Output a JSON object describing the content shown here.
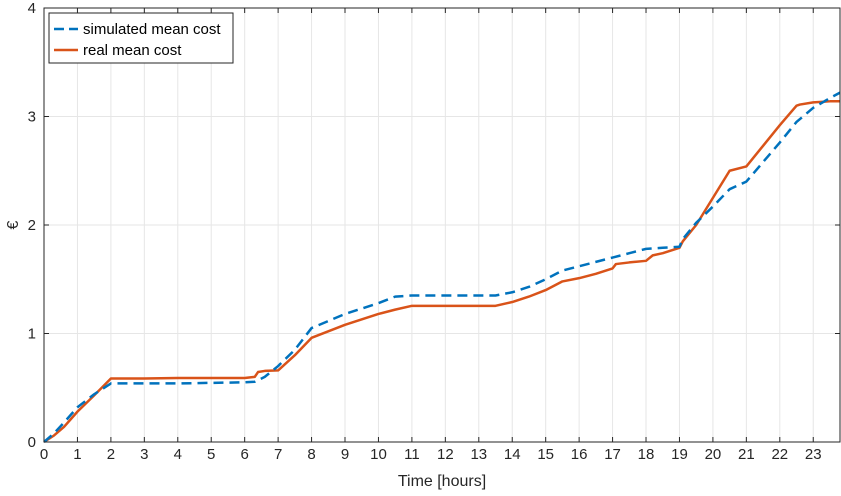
{
  "chart_data": {
    "type": "line",
    "title": "",
    "xlabel": "Time [hours]",
    "ylabel": "€",
    "xlim": [
      0,
      23.8
    ],
    "ylim": [
      0,
      4
    ],
    "x_ticks": [
      0,
      1,
      2,
      3,
      4,
      5,
      6,
      7,
      8,
      9,
      10,
      11,
      12,
      13,
      14,
      15,
      16,
      17,
      18,
      19,
      20,
      21,
      22,
      23
    ],
    "x_tick_labels": [
      "0",
      "1",
      "2",
      "3",
      "4",
      "5",
      "6",
      "7",
      "8",
      "9",
      "10",
      "11",
      "12",
      "13",
      "14",
      "15",
      "16",
      "17",
      "18",
      "19",
      "20",
      "21",
      "22",
      "23"
    ],
    "y_ticks": [
      0,
      1,
      2,
      3,
      4
    ],
    "y_tick_labels": [
      "0",
      "1",
      "2",
      "3",
      "4"
    ],
    "grid": true,
    "legend_position": "top-left",
    "series": [
      {
        "name": "simulated mean cost",
        "color": "#0072BD",
        "line_style": "dashed",
        "x": [
          0,
          0.3,
          0.6,
          1,
          1.5,
          2,
          3,
          4,
          5,
          6,
          6.3,
          6.6,
          7,
          7.5,
          8,
          9,
          10,
          10.5,
          11,
          12,
          13,
          13.5,
          14,
          14.5,
          15,
          15.5,
          16,
          16.5,
          17,
          17.5,
          18,
          18.5,
          19,
          19.1,
          19.5,
          20,
          20.5,
          21,
          21.5,
          22,
          22.5,
          23,
          23.5,
          23.8
        ],
        "values": [
          0,
          0.08,
          0.18,
          0.32,
          0.44,
          0.54,
          0.54,
          0.54,
          0.545,
          0.55,
          0.555,
          0.6,
          0.7,
          0.85,
          1.05,
          1.18,
          1.28,
          1.34,
          1.35,
          1.35,
          1.35,
          1.35,
          1.38,
          1.43,
          1.5,
          1.58,
          1.62,
          1.66,
          1.7,
          1.74,
          1.78,
          1.79,
          1.8,
          1.87,
          2.02,
          2.17,
          2.33,
          2.4,
          2.58,
          2.76,
          2.95,
          3.08,
          3.17,
          3.22
        ]
      },
      {
        "name": "real mean cost",
        "color": "#D95319",
        "line_style": "solid",
        "x": [
          0,
          0.3,
          0.6,
          1,
          1.5,
          2,
          3,
          4,
          5,
          6,
          6.3,
          6.4,
          6.6,
          7,
          7.5,
          8,
          9,
          10,
          10.5,
          11,
          12,
          13,
          13.5,
          14,
          14.5,
          15,
          15.5,
          16,
          16.5,
          17,
          17.1,
          17.5,
          18,
          18.2,
          18.5,
          19,
          19.1,
          19.5,
          20,
          20.5,
          21,
          21.5,
          22,
          22.5,
          22.6,
          23,
          23.5,
          23.8
        ],
        "values": [
          0,
          0.06,
          0.14,
          0.28,
          0.43,
          0.585,
          0.585,
          0.59,
          0.59,
          0.59,
          0.6,
          0.645,
          0.655,
          0.66,
          0.8,
          0.96,
          1.08,
          1.18,
          1.22,
          1.255,
          1.255,
          1.255,
          1.255,
          1.29,
          1.34,
          1.4,
          1.48,
          1.51,
          1.55,
          1.6,
          1.64,
          1.655,
          1.67,
          1.72,
          1.74,
          1.79,
          1.85,
          2.0,
          2.25,
          2.5,
          2.54,
          2.73,
          2.92,
          3.1,
          3.11,
          3.13,
          3.14,
          3.14
        ]
      }
    ]
  }
}
